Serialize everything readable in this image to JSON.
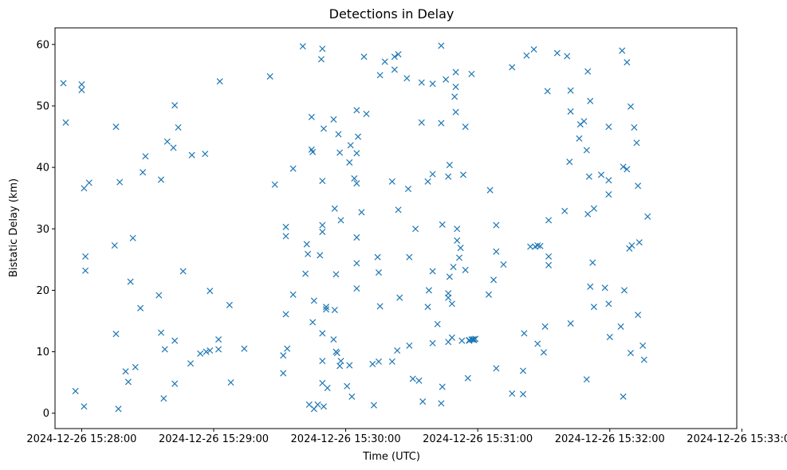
{
  "chart_data": {
    "type": "scatter",
    "title": "Detections in Delay",
    "xlabel": "Time (UTC)",
    "ylabel": "Bistatic Delay (km)",
    "marker": "x",
    "marker_color": "#1f77b4",
    "grid": false,
    "legend": false,
    "x_unit": "seconds after 2024-12-26 15:27:00 UTC",
    "xlim": [
      47.9,
      357.7
    ],
    "ylim": [
      -2.5,
      62.7
    ],
    "x_ticks": [
      {
        "value": 60,
        "label": "2024-12-26 15:28:00"
      },
      {
        "value": 120,
        "label": "2024-12-26 15:29:00"
      },
      {
        "value": 180,
        "label": "2024-12-26 15:30:00"
      },
      {
        "value": 240,
        "label": "2024-12-26 15:31:00"
      },
      {
        "value": 300,
        "label": "2024-12-26 15:32:00"
      },
      {
        "value": 360,
        "label": "2024-12-26 15:33:00"
      }
    ],
    "y_ticks": [
      {
        "value": 0,
        "label": "0"
      },
      {
        "value": 10,
        "label": "10"
      },
      {
        "value": 20,
        "label": "20"
      },
      {
        "value": 30,
        "label": "30"
      },
      {
        "value": 40,
        "label": "40"
      },
      {
        "value": 50,
        "label": "50"
      },
      {
        "value": 60,
        "label": "60"
      }
    ],
    "points": [
      [
        51.7,
        53.7
      ],
      [
        52.8,
        47.3
      ],
      [
        57.2,
        3.6
      ],
      [
        60.0,
        53.5
      ],
      [
        60.0,
        52.6
      ],
      [
        61.1,
        1.1
      ],
      [
        61.1,
        36.6
      ],
      [
        61.7,
        25.5
      ],
      [
        61.7,
        23.2
      ],
      [
        63.4,
        37.5
      ],
      [
        75.0,
        27.3
      ],
      [
        75.6,
        12.9
      ],
      [
        75.6,
        46.6
      ],
      [
        76.7,
        0.7
      ],
      [
        77.3,
        37.6
      ],
      [
        80.0,
        6.8
      ],
      [
        81.2,
        5.1
      ],
      [
        82.2,
        21.4
      ],
      [
        83.3,
        28.5
      ],
      [
        84.4,
        7.5
      ],
      [
        86.7,
        17.1
      ],
      [
        87.8,
        39.2
      ],
      [
        89.0,
        41.8
      ],
      [
        95.1,
        19.2
      ],
      [
        96.1,
        13.1
      ],
      [
        96.1,
        38.0
      ],
      [
        97.3,
        2.4
      ],
      [
        97.8,
        10.4
      ],
      [
        98.9,
        44.2
      ],
      [
        101.7,
        43.2
      ],
      [
        102.3,
        4.8
      ],
      [
        102.3,
        11.8
      ],
      [
        102.3,
        50.1
      ],
      [
        103.9,
        46.5
      ],
      [
        106.1,
        23.1
      ],
      [
        109.5,
        8.1
      ],
      [
        110.1,
        42.0
      ],
      [
        113.9,
        9.7
      ],
      [
        116.1,
        42.2
      ],
      [
        116.6,
        10.0
      ],
      [
        118.3,
        10.2
      ],
      [
        118.3,
        19.9
      ],
      [
        122.2,
        12.0
      ],
      [
        122.2,
        10.4
      ],
      [
        122.8,
        54.0
      ],
      [
        127.2,
        17.6
      ],
      [
        127.8,
        5.0
      ],
      [
        133.9,
        10.5
      ],
      [
        145.6,
        54.8
      ],
      [
        147.8,
        37.2
      ],
      [
        151.6,
        6.5
      ],
      [
        151.6,
        9.4
      ],
      [
        152.8,
        30.3
      ],
      [
        152.8,
        28.8
      ],
      [
        152.8,
        16.1
      ],
      [
        153.4,
        10.5
      ],
      [
        156.1,
        19.3
      ],
      [
        156.1,
        39.8
      ],
      [
        160.5,
        59.7
      ],
      [
        161.7,
        22.7
      ],
      [
        162.3,
        27.5
      ],
      [
        162.8,
        25.9
      ],
      [
        163.4,
        1.4
      ],
      [
        164.5,
        48.2
      ],
      [
        164.5,
        42.9
      ],
      [
        165.0,
        42.5
      ],
      [
        165.0,
        14.8
      ],
      [
        165.6,
        0.7
      ],
      [
        165.6,
        18.3
      ],
      [
        167.3,
        1.4
      ],
      [
        168.3,
        25.7
      ],
      [
        168.9,
        57.6
      ],
      [
        169.4,
        59.3
      ],
      [
        169.4,
        37.8
      ],
      [
        169.4,
        29.5
      ],
      [
        169.4,
        30.6
      ],
      [
        169.4,
        13.0
      ],
      [
        169.4,
        8.5
      ],
      [
        169.4,
        4.9
      ],
      [
        170.0,
        46.3
      ],
      [
        170.0,
        1.1
      ],
      [
        171.1,
        17.3
      ],
      [
        171.1,
        16.9
      ],
      [
        171.7,
        4.1
      ],
      [
        174.5,
        12.0
      ],
      [
        174.5,
        47.8
      ],
      [
        175.0,
        16.8
      ],
      [
        175.0,
        33.3
      ],
      [
        175.6,
        22.6
      ],
      [
        175.6,
        10.0
      ],
      [
        176.1,
        9.8
      ],
      [
        176.7,
        45.4
      ],
      [
        177.3,
        7.7
      ],
      [
        177.3,
        42.4
      ],
      [
        177.8,
        31.4
      ],
      [
        177.8,
        8.5
      ],
      [
        180.6,
        4.4
      ],
      [
        181.7,
        7.8
      ],
      [
        181.7,
        40.8
      ],
      [
        182.2,
        43.6
      ],
      [
        182.8,
        2.7
      ],
      [
        183.9,
        38.2
      ],
      [
        185.0,
        42.3
      ],
      [
        185.0,
        49.3
      ],
      [
        185.0,
        37.4
      ],
      [
        185.0,
        28.6
      ],
      [
        185.0,
        24.4
      ],
      [
        185.0,
        20.3
      ],
      [
        185.6,
        45.0
      ],
      [
        187.2,
        32.7
      ],
      [
        188.3,
        58.0
      ],
      [
        189.4,
        48.7
      ],
      [
        192.2,
        8.0
      ],
      [
        192.8,
        1.3
      ],
      [
        194.5,
        25.4
      ],
      [
        195.0,
        22.9
      ],
      [
        195.0,
        8.4
      ],
      [
        195.6,
        17.4
      ],
      [
        195.6,
        55.0
      ],
      [
        197.8,
        57.2
      ],
      [
        201.1,
        8.4
      ],
      [
        201.1,
        37.7
      ],
      [
        202.2,
        55.9
      ],
      [
        202.2,
        58.0
      ],
      [
        203.4,
        10.2
      ],
      [
        203.9,
        58.4
      ],
      [
        203.9,
        33.1
      ],
      [
        204.5,
        18.8
      ],
      [
        207.8,
        54.5
      ],
      [
        208.4,
        36.5
      ],
      [
        208.9,
        25.4
      ],
      [
        208.9,
        11.0
      ],
      [
        210.5,
        5.6
      ],
      [
        211.7,
        30.0
      ],
      [
        213.3,
        5.3
      ],
      [
        214.5,
        47.3
      ],
      [
        214.5,
        53.8
      ],
      [
        215.0,
        1.9
      ],
      [
        217.3,
        37.7
      ],
      [
        217.3,
        17.3
      ],
      [
        217.8,
        20.0
      ],
      [
        219.5,
        53.6
      ],
      [
        219.5,
        38.9
      ],
      [
        219.5,
        23.1
      ],
      [
        219.5,
        11.4
      ],
      [
        221.7,
        14.5
      ],
      [
        223.4,
        47.2
      ],
      [
        223.4,
        59.8
      ],
      [
        223.4,
        1.6
      ],
      [
        223.9,
        4.3
      ],
      [
        223.9,
        30.7
      ],
      [
        225.5,
        54.3
      ],
      [
        226.6,
        11.6
      ],
      [
        226.6,
        38.5
      ],
      [
        226.6,
        19.5
      ],
      [
        226.6,
        18.8
      ],
      [
        227.2,
        22.2
      ],
      [
        227.2,
        40.4
      ],
      [
        228.3,
        12.3
      ],
      [
        228.3,
        17.8
      ],
      [
        228.9,
        23.8
      ],
      [
        229.5,
        51.5
      ],
      [
        230.0,
        55.5
      ],
      [
        230.0,
        49.0
      ],
      [
        230.0,
        53.1
      ],
      [
        230.6,
        28.1
      ],
      [
        230.6,
        30.0
      ],
      [
        231.6,
        25.3
      ],
      [
        232.2,
        26.9
      ],
      [
        232.8,
        11.8
      ],
      [
        233.4,
        38.8
      ],
      [
        234.4,
        23.3
      ],
      [
        234.4,
        46.6
      ],
      [
        235.5,
        5.7
      ],
      [
        236.1,
        11.8
      ],
      [
        236.1,
        11.9
      ],
      [
        237.2,
        12.0
      ],
      [
        237.2,
        55.2
      ],
      [
        237.8,
        12.0
      ],
      [
        238.3,
        12.0
      ],
      [
        238.3,
        11.9
      ],
      [
        238.9,
        12.1
      ],
      [
        245.0,
        19.3
      ],
      [
        245.6,
        36.3
      ],
      [
        247.2,
        21.7
      ],
      [
        248.4,
        7.3
      ],
      [
        248.4,
        30.6
      ],
      [
        248.4,
        26.3
      ],
      [
        251.7,
        24.2
      ],
      [
        255.6,
        56.3
      ],
      [
        255.6,
        3.2
      ],
      [
        260.6,
        6.9
      ],
      [
        260.6,
        3.1
      ],
      [
        261.1,
        13.0
      ],
      [
        262.2,
        58.2
      ],
      [
        263.9,
        27.1
      ],
      [
        265.5,
        59.2
      ],
      [
        266.1,
        27.1
      ],
      [
        267.2,
        27.3
      ],
      [
        267.2,
        11.3
      ],
      [
        268.4,
        27.2
      ],
      [
        270.0,
        9.9
      ],
      [
        270.6,
        14.1
      ],
      [
        271.7,
        52.4
      ],
      [
        272.2,
        24.1
      ],
      [
        272.2,
        25.5
      ],
      [
        272.2,
        31.4
      ],
      [
        276.1,
        58.6
      ],
      [
        279.5,
        32.9
      ],
      [
        280.6,
        58.1
      ],
      [
        281.7,
        40.9
      ],
      [
        282.2,
        49.1
      ],
      [
        282.2,
        14.6
      ],
      [
        282.2,
        52.5
      ],
      [
        286.1,
        44.7
      ],
      [
        286.6,
        47.0
      ],
      [
        288.3,
        47.5
      ],
      [
        289.5,
        42.8
      ],
      [
        289.5,
        5.5
      ],
      [
        290.0,
        55.6
      ],
      [
        290.0,
        32.4
      ],
      [
        290.6,
        38.5
      ],
      [
        291.1,
        50.8
      ],
      [
        291.1,
        20.6
      ],
      [
        292.2,
        24.5
      ],
      [
        292.8,
        17.3
      ],
      [
        292.8,
        33.3
      ],
      [
        296.1,
        38.8
      ],
      [
        297.8,
        20.4
      ],
      [
        299.5,
        46.6
      ],
      [
        299.5,
        37.9
      ],
      [
        299.5,
        17.8
      ],
      [
        299.5,
        35.6
      ],
      [
        300.0,
        12.4
      ],
      [
        305.0,
        14.1
      ],
      [
        305.6,
        59.0
      ],
      [
        306.1,
        40.1
      ],
      [
        306.1,
        2.7
      ],
      [
        306.6,
        20.0
      ],
      [
        307.8,
        57.1
      ],
      [
        307.8,
        39.7
      ],
      [
        308.9,
        26.8
      ],
      [
        309.5,
        9.8
      ],
      [
        309.5,
        49.9
      ],
      [
        310.0,
        27.3
      ],
      [
        311.1,
        46.5
      ],
      [
        312.2,
        44.0
      ],
      [
        312.8,
        37.0
      ],
      [
        312.8,
        16.0
      ],
      [
        313.4,
        27.8
      ],
      [
        315.0,
        11.0
      ],
      [
        315.6,
        8.7
      ],
      [
        317.2,
        32.0
      ]
    ]
  }
}
